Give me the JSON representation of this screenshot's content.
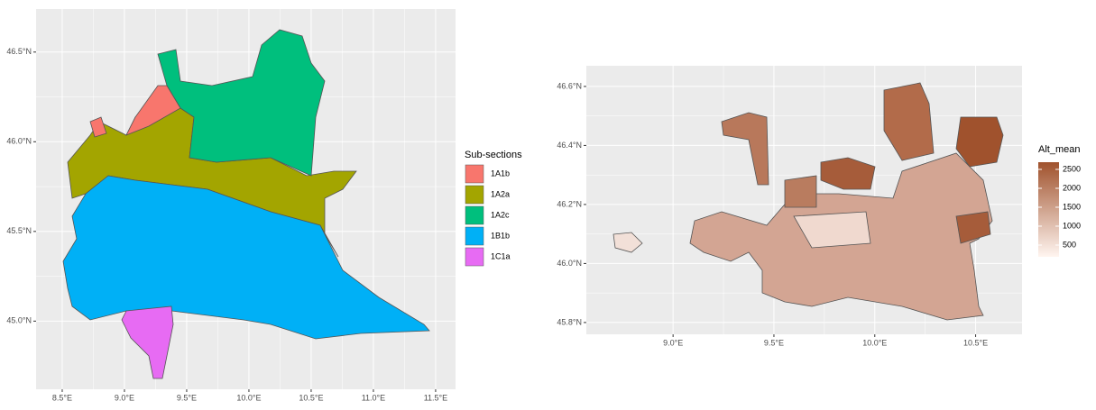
{
  "left_map": {
    "xlim": [
      8.29,
      11.66
    ],
    "ylim": [
      44.62,
      46.74
    ],
    "xticks": [
      {
        "value": 8.5,
        "label": "8.5°E"
      },
      {
        "value": 9.0,
        "label": "9.0°E"
      },
      {
        "value": 9.5,
        "label": "9.5°E"
      },
      {
        "value": 10.0,
        "label": "10.0°E"
      },
      {
        "value": 10.5,
        "label": "10.5°E"
      },
      {
        "value": 11.0,
        "label": "11.0°E"
      },
      {
        "value": 11.5,
        "label": "11.5°E"
      }
    ],
    "yticks": [
      {
        "value": 45.0,
        "label": "45.0°N"
      },
      {
        "value": 45.5,
        "label": "45.5°N"
      },
      {
        "value": 46.0,
        "label": "46.0°N"
      },
      {
        "value": 46.5,
        "label": "46.5°N"
      }
    ],
    "legend": {
      "title": "Sub-sections",
      "items": [
        {
          "label": "1A1b",
          "color": "#F8766D"
        },
        {
          "label": "1A2a",
          "color": "#A3A500"
        },
        {
          "label": "1A2c",
          "color": "#00BF7D"
        },
        {
          "label": "1B1b",
          "color": "#00B0F6"
        },
        {
          "label": "1C1a",
          "color": "#E76BF3"
        }
      ]
    }
  },
  "right_map": {
    "xlim": [
      8.57,
      10.73
    ],
    "ylim": [
      45.76,
      46.67
    ],
    "xticks": [
      {
        "value": 9.0,
        "label": "9.0°E"
      },
      {
        "value": 9.5,
        "label": "9.5°E"
      },
      {
        "value": 10.0,
        "label": "10.0°E"
      },
      {
        "value": 10.5,
        "label": "10.5°E"
      }
    ],
    "yticks": [
      {
        "value": 45.8,
        "label": "45.8°N"
      },
      {
        "value": 46.0,
        "label": "46.0°N"
      },
      {
        "value": 46.2,
        "label": "46.2°N"
      },
      {
        "value": 46.4,
        "label": "46.4°N"
      },
      {
        "value": 46.6,
        "label": "46.6°N"
      }
    ],
    "legend": {
      "title": "Alt_mean",
      "range": [
        190,
        2690
      ],
      "low_color": "#FFF5F0",
      "high_color": "#A0522D",
      "ticks": [
        500,
        1000,
        1500,
        2000,
        2500
      ]
    }
  }
}
